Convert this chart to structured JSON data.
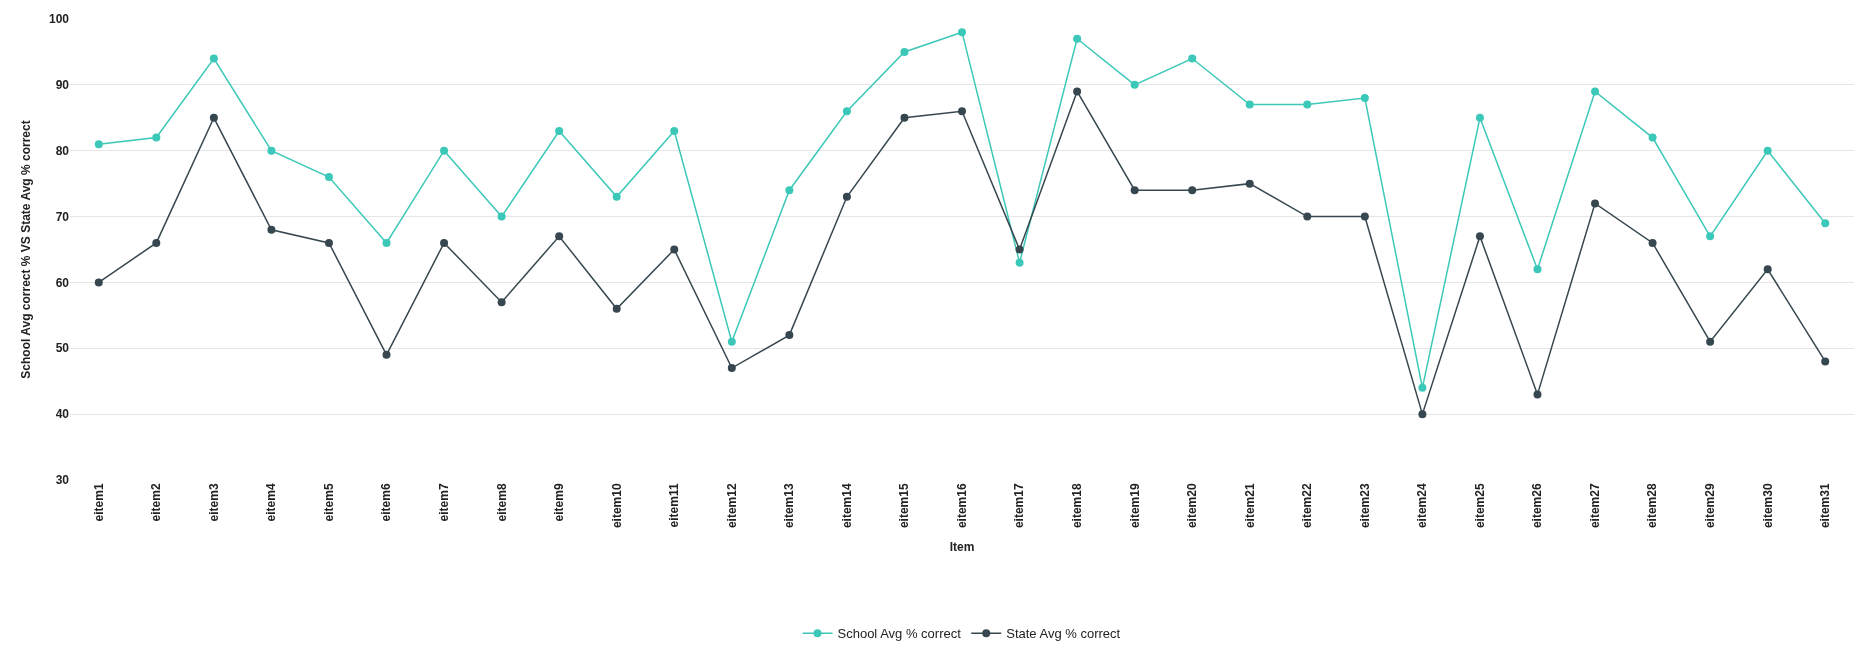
{
  "chart_data": {
    "type": "line",
    "xlabel": "Item",
    "ylabel": "School Avg correct % VS State Avg % correct",
    "categories": [
      "eitem1",
      "eitem2",
      "eitem3",
      "eitem4",
      "eitem5",
      "eitem6",
      "eitem7",
      "eitem8",
      "eitem9",
      "eitem10",
      "eitem11",
      "eitem12",
      "eitem13",
      "eitem14",
      "eitem15",
      "eitem16",
      "eitem17",
      "eitem18",
      "eitem19",
      "eitem20",
      "eitem21",
      "eitem22",
      "eitem23",
      "eitem24",
      "eitem25",
      "eitem26",
      "eitem27",
      "eitem28",
      "eitem29",
      "eitem30",
      "eitem31"
    ],
    "series": [
      {
        "name": "School Avg % correct",
        "color": "#3cc8b8",
        "values": [
          81,
          82,
          94,
          80,
          76,
          66,
          80,
          70,
          83,
          73,
          83,
          51,
          74,
          86,
          95,
          98,
          63,
          97,
          90,
          94,
          87,
          87,
          88,
          44,
          85,
          62,
          89,
          82,
          67,
          80,
          69
        ]
      },
      {
        "name": "State Avg % correct",
        "color": "#37474f",
        "values": [
          60,
          66,
          85,
          68,
          66,
          49,
          66,
          57,
          67,
          56,
          65,
          47,
          52,
          73,
          85,
          86,
          65,
          89,
          74,
          74,
          75,
          70,
          70,
          40,
          67,
          43,
          72,
          66,
          51,
          62,
          48
        ]
      }
    ],
    "ylim": [
      30,
      100
    ],
    "yticks": [
      30,
      40,
      50,
      60,
      70,
      80,
      90,
      100
    ],
    "grid": "y",
    "legend": "bottom",
    "marker": "circle",
    "line_style": "solid"
  }
}
